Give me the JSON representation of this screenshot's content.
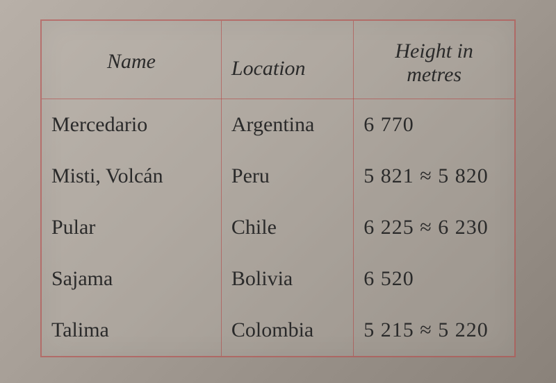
{
  "table": {
    "columns": {
      "name": "Name",
      "location": "Location",
      "height_line1": "Height in",
      "height_line2": "metres"
    },
    "rows": [
      {
        "name": "Mercedario",
        "location": "Argentina",
        "height": "6 770"
      },
      {
        "name": "Misti, Volcán",
        "location": "Peru",
        "height": "5 821 ≈ 5 820"
      },
      {
        "name": "Pular",
        "location": "Chile",
        "height": "6 225 ≈ 6 230"
      },
      {
        "name": "Sajama",
        "location": "Bolivia",
        "height": "6 520"
      },
      {
        "name": "Talima",
        "location": "Colombia",
        "height": "5 215 ≈ 5 220"
      }
    ],
    "border_color": "#b44c4c",
    "background_tint": "#c8c3bc",
    "font_family": "Times New Roman",
    "header_fontsize_pt": 22,
    "body_fontsize_pt": 22
  }
}
